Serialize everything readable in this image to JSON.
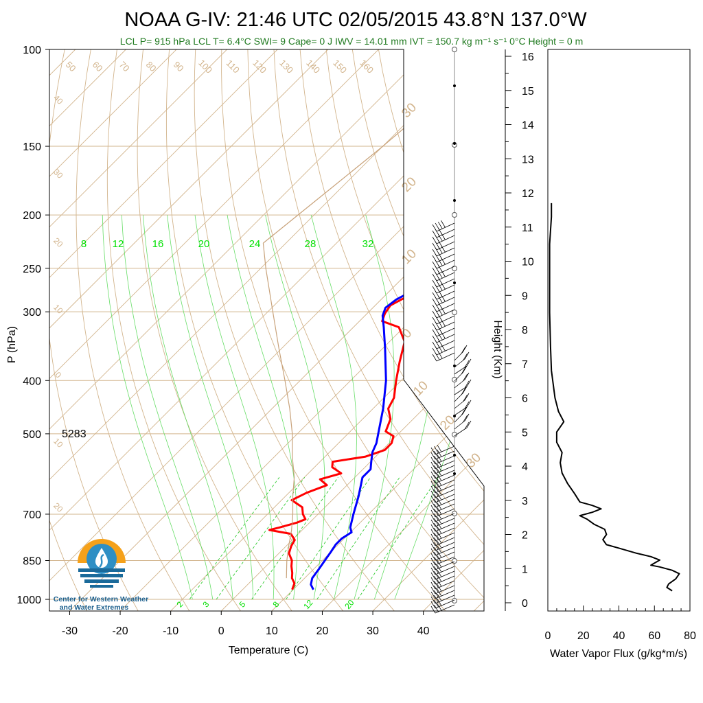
{
  "chart_data": {
    "type": "line",
    "title": "NOAA G-IV: 21:46 UTC 02/05/2015  43.8°N 137.0°W",
    "subtitle": "LCL P= 915 hPa  LCL T= 6.4°C  SWI= 9  Cape= 0 J  IWV = 14.01 mm  IVT = 150.7 kg m⁻¹ s⁻¹  0°C Height = 0 m",
    "skewt": {
      "xlabel": "Temperature (C)",
      "ylabel": "P (hPa)",
      "xlim": [
        -34,
        52
      ],
      "ylim": [
        1050,
        100
      ],
      "yscale": "log",
      "x_ticks": [
        -30,
        -20,
        -10,
        0,
        10,
        20,
        30,
        40
      ],
      "y_ticks": [
        100,
        150,
        200,
        250,
        300,
        400,
        500,
        700,
        850,
        1000
      ],
      "height_label": "5283",
      "mixing_ratio_labels": [
        "2",
        "3",
        "5",
        "8",
        "12",
        "20"
      ],
      "moist_adiabat_labels": [
        "8",
        "12",
        "16",
        "20",
        "24",
        "28",
        "32"
      ],
      "dry_adiabat_labels": [
        "50",
        "60",
        "70",
        "80",
        "90",
        "100",
        "110",
        "120",
        "130",
        "140",
        "150",
        "160"
      ],
      "isotherm_labels": [
        "40",
        "30",
        "20",
        "10",
        "0",
        "-10",
        "-20"
      ],
      "series": [
        {
          "name": "Dewpoint",
          "color": "#ff0000",
          "points": [
            {
              "p": 960,
              "v": 9.8
            },
            {
              "p": 935,
              "v": 9.0
            },
            {
              "p": 915,
              "v": 7.5
            },
            {
              "p": 895,
              "v": 6.5
            },
            {
              "p": 870,
              "v": 5.0
            },
            {
              "p": 850,
              "v": 4.0
            },
            {
              "p": 825,
              "v": 2.0
            },
            {
              "p": 800,
              "v": 1.0
            },
            {
              "p": 780,
              "v": 0.5
            },
            {
              "p": 760,
              "v": -1.5
            },
            {
              "p": 748,
              "v": -6.5
            },
            {
              "p": 740,
              "v": -5.0
            },
            {
              "p": 725,
              "v": -2.5
            },
            {
              "p": 715,
              "v": -1.5
            },
            {
              "p": 700,
              "v": -3.0
            },
            {
              "p": 680,
              "v": -4.5
            },
            {
              "p": 660,
              "v": -8.0
            },
            {
              "p": 640,
              "v": -6.5
            },
            {
              "p": 620,
              "v": -4.0
            },
            {
              "p": 605,
              "v": -6.5
            },
            {
              "p": 590,
              "v": -3.5
            },
            {
              "p": 575,
              "v": -6.5
            },
            {
              "p": 562,
              "v": -7.5
            },
            {
              "p": 550,
              "v": -2.0
            },
            {
              "p": 535,
              "v": 0.5
            },
            {
              "p": 520,
              "v": 0.5
            },
            {
              "p": 505,
              "v": -0.5
            },
            {
              "p": 495,
              "v": -3.0
            },
            {
              "p": 470,
              "v": -4.5
            },
            {
              "p": 450,
              "v": -7.0
            },
            {
              "p": 430,
              "v": -8.0
            },
            {
              "p": 400,
              "v": -11.0
            },
            {
              "p": 370,
              "v": -14.0
            },
            {
              "p": 340,
              "v": -17.0
            },
            {
              "p": 320,
              "v": -21.0
            },
            {
              "p": 312,
              "v": -25.5
            },
            {
              "p": 302,
              "v": -26.5
            },
            {
              "p": 292,
              "v": -27.0
            },
            {
              "p": 285,
              "v": -26.0
            },
            {
              "p": 272,
              "v": -23.5
            },
            {
              "p": 262,
              "v": -21.0
            },
            {
              "p": 255,
              "v": -18.5
            },
            {
              "p": 245,
              "v": -16.5
            },
            {
              "p": 235,
              "v": -15.5
            },
            {
              "p": 222,
              "v": -14.5
            },
            {
              "p": 212,
              "v": -13.0
            },
            {
              "p": 205,
              "v": -12.0
            }
          ]
        },
        {
          "name": "Temperature",
          "color": "#0000ff",
          "points": [
            {
              "p": 960,
              "v": 14.0
            },
            {
              "p": 940,
              "v": 12.5
            },
            {
              "p": 915,
              "v": 11.5
            },
            {
              "p": 880,
              "v": 11.0
            },
            {
              "p": 850,
              "v": 10.5
            },
            {
              "p": 820,
              "v": 10.0
            },
            {
              "p": 795,
              "v": 9.5
            },
            {
              "p": 775,
              "v": 9.5
            },
            {
              "p": 755,
              "v": 10.2
            },
            {
              "p": 740,
              "v": 9.0
            },
            {
              "p": 700,
              "v": 7.0
            },
            {
              "p": 650,
              "v": 4.5
            },
            {
              "p": 600,
              "v": 1.5
            },
            {
              "p": 580,
              "v": 1.5
            },
            {
              "p": 560,
              "v": 0.0
            },
            {
              "p": 540,
              "v": -1.5
            },
            {
              "p": 520,
              "v": -2.5
            },
            {
              "p": 500,
              "v": -4.0
            },
            {
              "p": 450,
              "v": -8.0
            },
            {
              "p": 400,
              "v": -13.0
            },
            {
              "p": 350,
              "v": -19.5
            },
            {
              "p": 320,
              "v": -24.0
            },
            {
              "p": 305,
              "v": -26.5
            },
            {
              "p": 295,
              "v": -27.5
            },
            {
              "p": 285,
              "v": -27.0
            },
            {
              "p": 275,
              "v": -25.5
            },
            {
              "p": 265,
              "v": -21.5
            },
            {
              "p": 257,
              "v": -17.0
            },
            {
              "p": 250,
              "v": -15.0
            },
            {
              "p": 242,
              "v": -14.5
            },
            {
              "p": 235,
              "v": -14.5
            },
            {
              "p": 225,
              "v": -13.0
            },
            {
              "p": 215,
              "v": -11.5
            },
            {
              "p": 205,
              "v": -10.5
            }
          ]
        },
        {
          "name": "Parcel",
          "color": "#c8a27a",
          "points": [
            {
              "p": 915,
              "v": 6.4
            },
            {
              "p": 850,
              "v": 3.0
            },
            {
              "p": 800,
              "v": 0.5
            },
            {
              "p": 750,
              "v": -2.0
            },
            {
              "p": 700,
              "v": -5.0
            },
            {
              "p": 650,
              "v": -8.5
            },
            {
              "p": 600,
              "v": -12.0
            },
            {
              "p": 550,
              "v": -16.5
            },
            {
              "p": 500,
              "v": -21.0
            },
            {
              "p": 450,
              "v": -26.5
            },
            {
              "p": 400,
              "v": -33.0
            },
            {
              "p": 350,
              "v": -40.5
            },
            {
              "p": 300,
              "v": -49.0
            },
            {
              "p": 250,
              "v": -59.0
            },
            {
              "p": 225,
              "v": -64.5
            }
          ]
        },
        {
          "name": "Parcel upper",
          "color": "#c8a27a",
          "points": [
            {
              "p": 225,
              "v": -64.5
            },
            {
              "p": 180,
              "v": -62.0
            },
            {
              "p": 150,
              "v": -60.0
            },
            {
              "p": 125,
              "v": -58.5
            },
            {
              "p": 110,
              "v": -57.0
            }
          ]
        }
      ]
    },
    "height_axis": {
      "ylabel": "Height (Km)",
      "ticks": [
        0,
        1,
        2,
        3,
        4,
        5,
        6,
        7,
        8,
        9,
        10,
        11,
        12,
        13,
        14,
        15,
        16
      ],
      "ylim": [
        -0.3,
        16.3
      ]
    },
    "flux_panel": {
      "xlabel": "Water Vapor Flux (g/kg*m/s)",
      "xlim": [
        0,
        80
      ],
      "x_ticks": [
        0,
        20,
        40,
        60,
        80
      ],
      "series": [
        {
          "name": "Water vapor flux",
          "color": "#000000",
          "points": [
            {
              "h": 0.35,
              "v": 70
            },
            {
              "h": 0.45,
              "v": 67
            },
            {
              "h": 0.55,
              "v": 68
            },
            {
              "h": 0.7,
              "v": 72
            },
            {
              "h": 0.85,
              "v": 74
            },
            {
              "h": 0.95,
              "v": 70
            },
            {
              "h": 1.05,
              "v": 63
            },
            {
              "h": 1.1,
              "v": 58
            },
            {
              "h": 1.25,
              "v": 63
            },
            {
              "h": 1.35,
              "v": 58
            },
            {
              "h": 1.45,
              "v": 50
            },
            {
              "h": 1.6,
              "v": 40
            },
            {
              "h": 1.7,
              "v": 33
            },
            {
              "h": 1.85,
              "v": 31
            },
            {
              "h": 2.0,
              "v": 33
            },
            {
              "h": 2.15,
              "v": 32
            },
            {
              "h": 2.3,
              "v": 26
            },
            {
              "h": 2.45,
              "v": 22
            },
            {
              "h": 2.55,
              "v": 18
            },
            {
              "h": 2.65,
              "v": 25
            },
            {
              "h": 2.75,
              "v": 30
            },
            {
              "h": 2.85,
              "v": 25
            },
            {
              "h": 2.95,
              "v": 18
            },
            {
              "h": 3.2,
              "v": 15
            },
            {
              "h": 3.5,
              "v": 11
            },
            {
              "h": 3.8,
              "v": 8
            },
            {
              "h": 4.1,
              "v": 7
            },
            {
              "h": 4.4,
              "v": 8
            },
            {
              "h": 4.7,
              "v": 5
            },
            {
              "h": 5.0,
              "v": 5
            },
            {
              "h": 5.3,
              "v": 9
            },
            {
              "h": 5.6,
              "v": 6
            },
            {
              "h": 6.0,
              "v": 4
            },
            {
              "h": 6.4,
              "v": 3
            },
            {
              "h": 6.8,
              "v": 2
            },
            {
              "h": 7.5,
              "v": 1.5
            },
            {
              "h": 8.5,
              "v": 1
            },
            {
              "h": 9.5,
              "v": 1
            },
            {
              "h": 10.5,
              "v": 1
            },
            {
              "h": 11.3,
              "v": 2
            },
            {
              "h": 11.7,
              "v": 2
            }
          ]
        }
      ]
    },
    "logo": {
      "line1": "Center for Western Weather",
      "line2": "and Water Extremes",
      "colors": {
        "sun": "#f5a11a",
        "drop": "#2e8fc4",
        "water": "#1a6a9a",
        "text": "#1a5e8c"
      }
    },
    "colors": {
      "isotherm": "#d2b48c",
      "dry_adiabat": "#d2b48c",
      "moist_adiabat": "#66dd66",
      "mixing_ratio": "#33cc33",
      "label_green": "#00e000"
    }
  }
}
